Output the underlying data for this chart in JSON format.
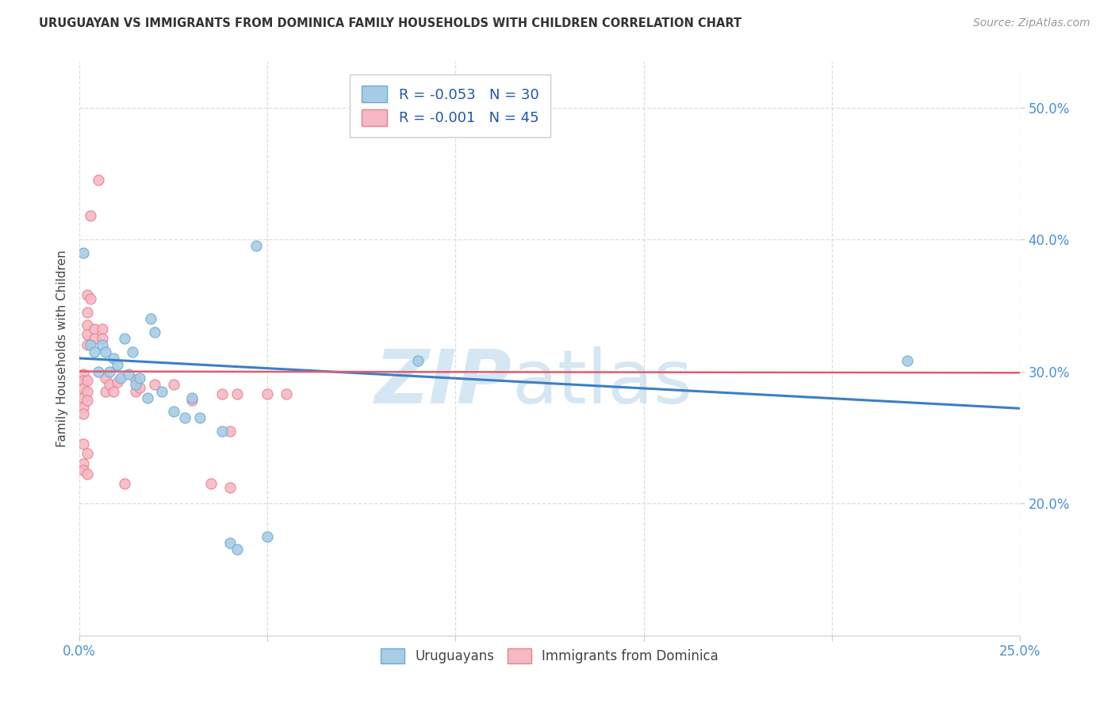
{
  "title": "URUGUAYAN VS IMMIGRANTS FROM DOMINICA FAMILY HOUSEHOLDS WITH CHILDREN CORRELATION CHART",
  "source": "Source: ZipAtlas.com",
  "ylabel": "Family Households with Children",
  "y_ticks": [
    0.2,
    0.3,
    0.4,
    0.5
  ],
  "y_tick_labels": [
    "20.0%",
    "30.0%",
    "40.0%",
    "50.0%"
  ],
  "xlim": [
    0.0,
    0.25
  ],
  "ylim": [
    0.1,
    0.535
  ],
  "uruguayan_scatter": [
    [
      0.001,
      0.39
    ],
    [
      0.003,
      0.32
    ],
    [
      0.004,
      0.315
    ],
    [
      0.005,
      0.3
    ],
    [
      0.006,
      0.32
    ],
    [
      0.007,
      0.315
    ],
    [
      0.008,
      0.3
    ],
    [
      0.009,
      0.31
    ],
    [
      0.01,
      0.305
    ],
    [
      0.011,
      0.295
    ],
    [
      0.012,
      0.325
    ],
    [
      0.013,
      0.298
    ],
    [
      0.014,
      0.315
    ],
    [
      0.015,
      0.29
    ],
    [
      0.016,
      0.295
    ],
    [
      0.018,
      0.28
    ],
    [
      0.019,
      0.34
    ],
    [
      0.02,
      0.33
    ],
    [
      0.022,
      0.285
    ],
    [
      0.025,
      0.27
    ],
    [
      0.028,
      0.265
    ],
    [
      0.03,
      0.28
    ],
    [
      0.032,
      0.265
    ],
    [
      0.038,
      0.255
    ],
    [
      0.04,
      0.17
    ],
    [
      0.042,
      0.165
    ],
    [
      0.047,
      0.395
    ],
    [
      0.05,
      0.175
    ],
    [
      0.09,
      0.308
    ],
    [
      0.22,
      0.308
    ]
  ],
  "dominica_scatter": [
    [
      0.001,
      0.298
    ],
    [
      0.001,
      0.293
    ],
    [
      0.001,
      0.287
    ],
    [
      0.001,
      0.28
    ],
    [
      0.001,
      0.273
    ],
    [
      0.001,
      0.268
    ],
    [
      0.001,
      0.245
    ],
    [
      0.001,
      0.23
    ],
    [
      0.001,
      0.225
    ],
    [
      0.002,
      0.358
    ],
    [
      0.002,
      0.345
    ],
    [
      0.002,
      0.335
    ],
    [
      0.002,
      0.328
    ],
    [
      0.002,
      0.32
    ],
    [
      0.002,
      0.293
    ],
    [
      0.002,
      0.285
    ],
    [
      0.002,
      0.278
    ],
    [
      0.002,
      0.238
    ],
    [
      0.002,
      0.222
    ],
    [
      0.003,
      0.418
    ],
    [
      0.003,
      0.355
    ],
    [
      0.004,
      0.332
    ],
    [
      0.004,
      0.325
    ],
    [
      0.005,
      0.445
    ],
    [
      0.006,
      0.332
    ],
    [
      0.006,
      0.325
    ],
    [
      0.007,
      0.295
    ],
    [
      0.007,
      0.285
    ],
    [
      0.008,
      0.29
    ],
    [
      0.009,
      0.285
    ],
    [
      0.01,
      0.292
    ],
    [
      0.012,
      0.215
    ],
    [
      0.015,
      0.294
    ],
    [
      0.015,
      0.285
    ],
    [
      0.016,
      0.288
    ],
    [
      0.02,
      0.29
    ],
    [
      0.025,
      0.29
    ],
    [
      0.03,
      0.278
    ],
    [
      0.035,
      0.215
    ],
    [
      0.038,
      0.283
    ],
    [
      0.04,
      0.255
    ],
    [
      0.04,
      0.212
    ],
    [
      0.042,
      0.283
    ],
    [
      0.05,
      0.283
    ],
    [
      0.055,
      0.283
    ]
  ],
  "uruguayan_line_x": [
    0.0,
    0.25
  ],
  "uruguayan_line_y": [
    0.31,
    0.272
  ],
  "dominica_line_x": [
    0.0,
    0.25
  ],
  "dominica_line_y": [
    0.3,
    0.299
  ],
  "scatter_size": 90,
  "uruguayan_color": "#a8cce4",
  "uruguayan_edge": "#6aacd4",
  "dominica_color": "#f5b8c4",
  "dominica_edge": "#e8808f",
  "blue_line_color": "#3b7fc4",
  "pink_line_color": "#e05c70",
  "watermark_zip_color": "#c5ddf0",
  "watermark_atlas_color": "#c5ddf0",
  "background_color": "#ffffff",
  "grid_color": "#dddddd",
  "grid_style": "--",
  "title_color": "#333333",
  "source_color": "#999999",
  "tick_color": "#4a90d9",
  "ylabel_color": "#444444",
  "legend_text_color": "#333333",
  "legend_value_color": "#2255aa"
}
